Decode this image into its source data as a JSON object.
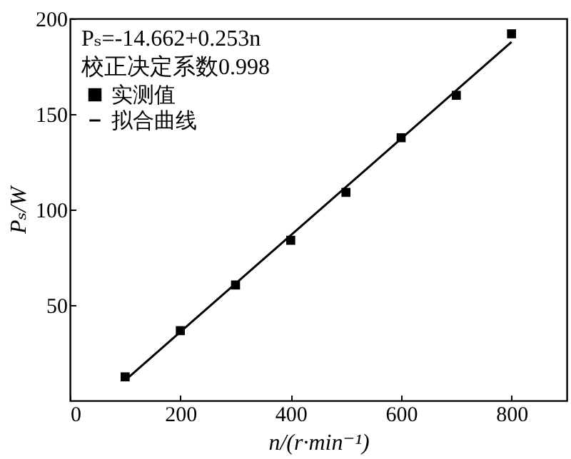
{
  "chart_data": {
    "type": "scatter",
    "xlabel": "n/(r·min⁻¹)",
    "ylabel": "Pₛ/W",
    "annotations": [
      "Pₛ=-14.662+0.253n",
      "校正决定系数0.998"
    ],
    "series": [
      {
        "name": "实测值",
        "marker": "square",
        "color": "#000000",
        "x": [
          100,
          200,
          300,
          400,
          500,
          600,
          700,
          800
        ],
        "values": [
          12.4,
          36.6,
          60.5,
          83.9,
          109,
          137.6,
          159.8,
          192
        ]
      },
      {
        "name": "拟合曲线",
        "type": "line",
        "color": "#000000",
        "line_style": "solid",
        "marker": "none",
        "x": [
          100,
          800
        ],
        "values": [
          10.6,
          187.7
        ]
      }
    ],
    "xlim": [
      0,
      900
    ],
    "xticks": [
      0,
      200,
      400,
      600,
      800
    ],
    "ylim": [
      0,
      200
    ],
    "yticks": [
      50,
      100,
      150,
      200
    ],
    "grid": false,
    "legend": "top left"
  }
}
